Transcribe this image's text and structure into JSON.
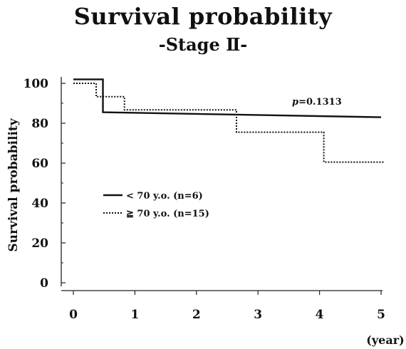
{
  "chart_data": {
    "type": "line",
    "title": "Survival probability",
    "subtitle": "-Stage Ⅱ-",
    "xlabel": "(year)",
    "ylabel": "Survival probability",
    "xlim": [
      0,
      5
    ],
    "ylim": [
      0,
      100
    ],
    "x_ticks": [
      "0",
      "1",
      "2",
      "3",
      "4",
      "5"
    ],
    "y_ticks": [
      "0",
      "20",
      "40",
      "60",
      "80",
      "100"
    ],
    "grid": false,
    "annotation": {
      "prefix": "p",
      "text": "=0.1313"
    },
    "legend_position": "center-left",
    "series": [
      {
        "name": "< 70 y.o. (n=6)",
        "style": "solid",
        "x": [
          0,
          0.48,
          0.48,
          5
        ],
        "y": [
          102,
          102,
          85.5,
          83
        ]
      },
      {
        "name": "≧ 70 y.o. (n=15)",
        "style": "dotted",
        "x": [
          0,
          0.37,
          0.37,
          0.83,
          0.83,
          2.65,
          2.65,
          4.07,
          4.07,
          5.05
        ],
        "y": [
          100,
          100,
          93.3,
          93.3,
          86.7,
          86.7,
          75.5,
          75.5,
          60.5,
          60.5
        ]
      }
    ]
  }
}
